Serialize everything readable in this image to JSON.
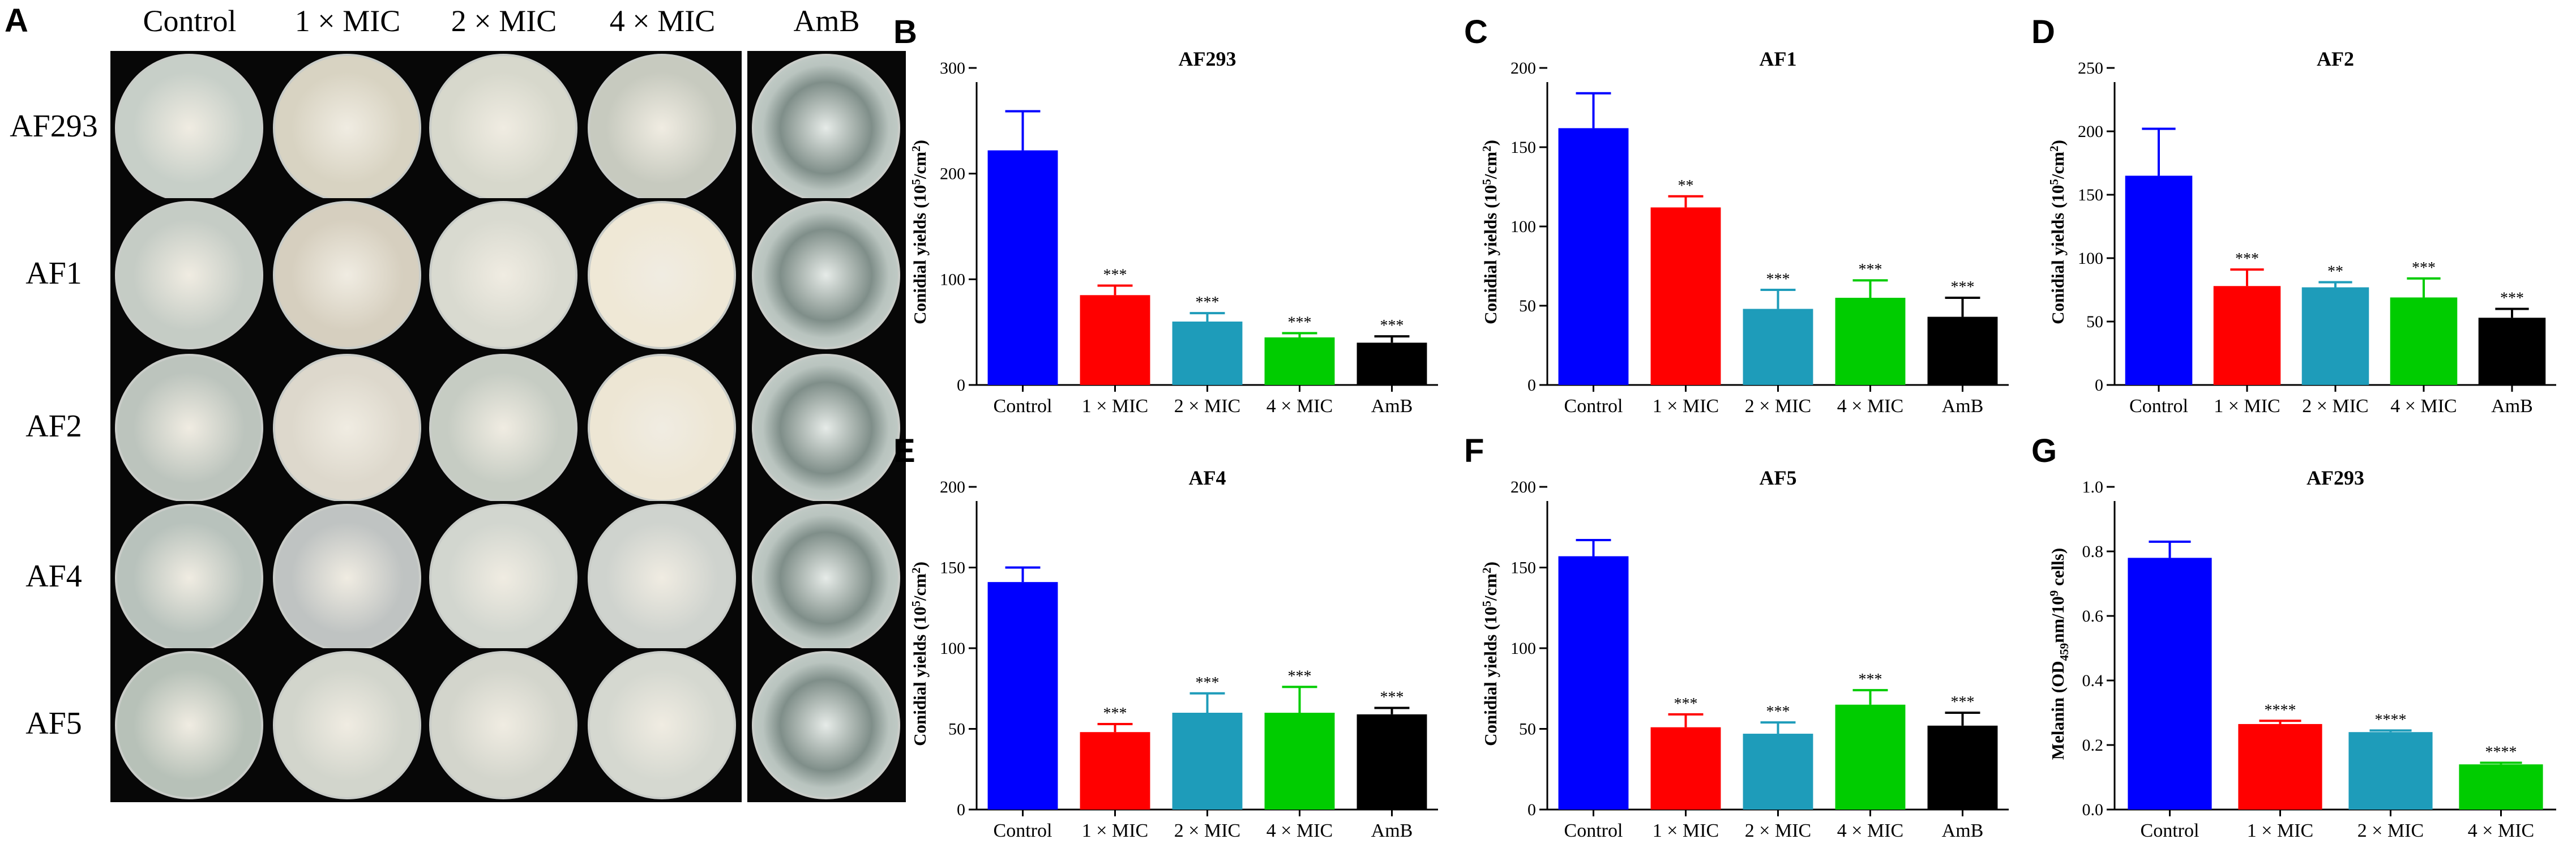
{
  "panel_a": {
    "letter": "A",
    "columns": [
      "Control",
      "1 × MIC",
      "2 × MIC",
      "4 × MIC",
      "AmB"
    ],
    "rows": [
      "AF293",
      "AF1",
      "AF2",
      "AF4",
      "AF5"
    ]
  },
  "colors": {
    "Control": "#0000ff",
    "1 × MIC": "#ff0000",
    "2 × MIC": "#1e9cba",
    "4 × MIC": "#00cc00",
    "AmB": "#000000"
  },
  "chart_data": [
    {
      "panel": "B",
      "type": "bar",
      "title": "AF293",
      "ylabel": "Conidial yields (10^5/cm^2)",
      "ylim": [
        0,
        300
      ],
      "yticks": [
        0,
        100,
        200,
        300
      ],
      "categories": [
        "Control",
        "1 × MIC",
        "2 × MIC",
        "4 × MIC",
        "AmB"
      ],
      "values": [
        222,
        85,
        60,
        45,
        40
      ],
      "errors": [
        37,
        9,
        8,
        4,
        6
      ],
      "significance": [
        "",
        "***",
        "***",
        "***",
        "***"
      ]
    },
    {
      "panel": "C",
      "type": "bar",
      "title": "AF1",
      "ylabel": "Conidial yields (10^5/cm^2)",
      "ylim": [
        0,
        200
      ],
      "yticks": [
        0,
        50,
        100,
        150,
        200
      ],
      "categories": [
        "Control",
        "1 × MIC",
        "2 × MIC",
        "4 × MIC",
        "AmB"
      ],
      "values": [
        162,
        112,
        48,
        55,
        43
      ],
      "errors": [
        22,
        7,
        12,
        11,
        12
      ],
      "significance": [
        "",
        "**",
        "***",
        "***",
        "***"
      ]
    },
    {
      "panel": "D",
      "type": "bar",
      "title": "AF2",
      "ylabel": "Conidial yields (10^5/cm^2)",
      "ylim": [
        0,
        250
      ],
      "yticks": [
        0,
        50,
        100,
        150,
        200,
        250
      ],
      "categories": [
        "Control",
        "1 × MIC",
        "2 × MIC",
        "4 × MIC",
        "AmB"
      ],
      "values": [
        165,
        78,
        77,
        69,
        53
      ],
      "errors": [
        37,
        13,
        4,
        15,
        7
      ],
      "significance": [
        "",
        "***",
        "**",
        "***",
        "***"
      ]
    },
    {
      "panel": "E",
      "type": "bar",
      "title": "AF4",
      "ylabel": "Conidial yields (10^5/cm^2)",
      "ylim": [
        0,
        200
      ],
      "yticks": [
        0,
        50,
        100,
        150,
        200
      ],
      "categories": [
        "Control",
        "1 × MIC",
        "2 × MIC",
        "4 × MIC",
        "AmB"
      ],
      "values": [
        141,
        48,
        60,
        60,
        59
      ],
      "errors": [
        9,
        5,
        12,
        16,
        4
      ],
      "significance": [
        "",
        "***",
        "***",
        "***",
        "***"
      ]
    },
    {
      "panel": "F",
      "type": "bar",
      "title": "AF5",
      "ylabel": "Conidial yields (10^5/cm^2)",
      "ylim": [
        0,
        200
      ],
      "yticks": [
        0,
        50,
        100,
        150,
        200
      ],
      "categories": [
        "Control",
        "1 × MIC",
        "2 × MIC",
        "4 × MIC",
        "AmB"
      ],
      "values": [
        157,
        51,
        47,
        65,
        52
      ],
      "errors": [
        10,
        8,
        7,
        9,
        8
      ],
      "significance": [
        "",
        "***",
        "***",
        "***",
        "***"
      ]
    },
    {
      "panel": "G",
      "type": "bar",
      "title": "AF293",
      "ylabel": "Melanin (OD459nm/10^9 cells)",
      "ylim": [
        0,
        1.0
      ],
      "yticks": [
        0.0,
        0.2,
        0.4,
        0.6,
        0.8,
        1.0
      ],
      "categories": [
        "Control",
        "1 × MIC",
        "2 × MIC",
        "4 × MIC"
      ],
      "values": [
        0.78,
        0.265,
        0.24,
        0.14
      ],
      "errors": [
        0.05,
        0.01,
        0.005,
        0.005
      ],
      "significance": [
        "",
        "****",
        "****",
        "****"
      ]
    }
  ]
}
